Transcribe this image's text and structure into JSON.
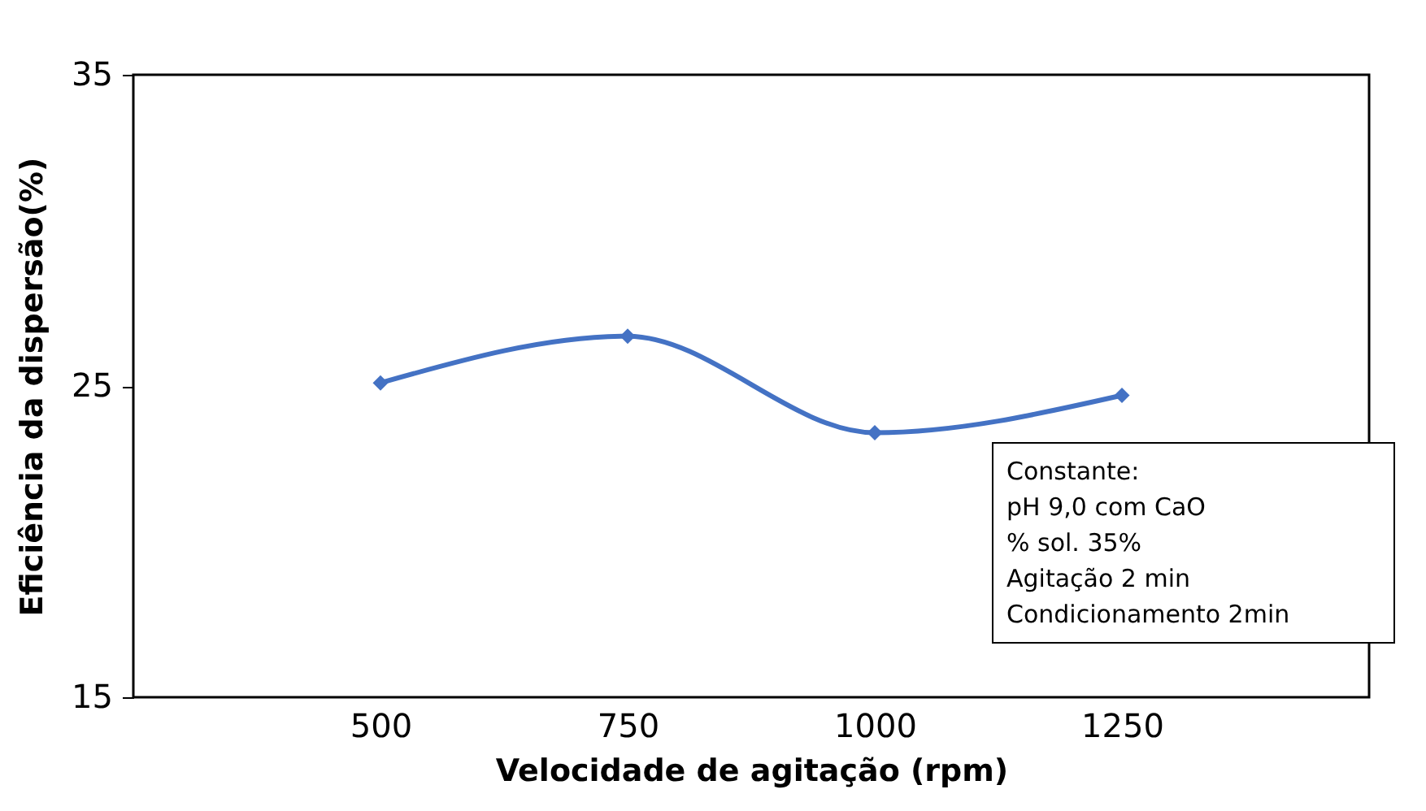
{
  "chart_data": {
    "type": "line",
    "xlabel": "Velocidade de agitação (rpm)",
    "ylabel": "Eficiência da dispersão(%)",
    "x": [
      500,
      750,
      1000,
      1250
    ],
    "series": [
      {
        "color": "#4472c4",
        "values": [
          25.1,
          26.6,
          23.5,
          24.7
        ]
      }
    ],
    "xlim": [
      250,
      1500
    ],
    "xticks": [
      500,
      750,
      1000,
      1250
    ],
    "ylim": [
      15,
      35
    ],
    "yticks": [
      15,
      25,
      35
    ],
    "marker": "diamond",
    "grid": false,
    "legend": false,
    "annotations": [
      "Constante:",
      "pH 9,0 com CaO",
      "% sol. 35%",
      "Agitação 2 min",
      "Condicionamento 2min"
    ]
  }
}
